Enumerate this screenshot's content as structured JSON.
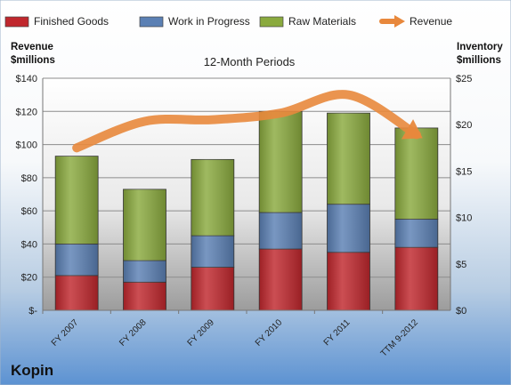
{
  "chart_data": {
    "type": "bar",
    "title": "12-Month Periods",
    "company": "Kopin",
    "categories": [
      "FY 2007",
      "FY 2008",
      "FY 2009",
      "FY 2010",
      "FY 2011",
      "TTM 9-2012"
    ],
    "left_axis": {
      "label_line1": "Revenue",
      "label_line2": "$millions",
      "ylim": [
        0,
        140
      ],
      "tick_labels": [
        "$-",
        "$20",
        "$40",
        "$60",
        "$80",
        "$100",
        "$120",
        "$140"
      ]
    },
    "right_axis": {
      "label_line1": "Inventory",
      "label_line2": "$millions",
      "ylim": [
        0,
        25
      ],
      "tick_labels": [
        "$0",
        "$5",
        "$10",
        "$15",
        "$20",
        "$25"
      ]
    },
    "series": [
      {
        "name": "Finished Goods",
        "kind": "stacked-bar",
        "axis": "left",
        "color": "#c0272d",
        "values": [
          21,
          17,
          26,
          37,
          35,
          38
        ]
      },
      {
        "name": "Work in Progress",
        "kind": "stacked-bar",
        "axis": "left",
        "color": "#5b80b4",
        "values": [
          19,
          13,
          19,
          22,
          29,
          17
        ]
      },
      {
        "name": "Raw Materials",
        "kind": "stacked-bar",
        "axis": "left",
        "color": "#8aaa3e",
        "values": [
          53,
          43,
          46,
          61,
          55,
          55
        ]
      },
      {
        "name": "Revenue",
        "kind": "line",
        "axis": "left",
        "color": "#e8883c",
        "values": [
          98,
          114,
          115,
          119,
          130,
          106
        ]
      }
    ],
    "legend_position": "top",
    "grid": true
  }
}
